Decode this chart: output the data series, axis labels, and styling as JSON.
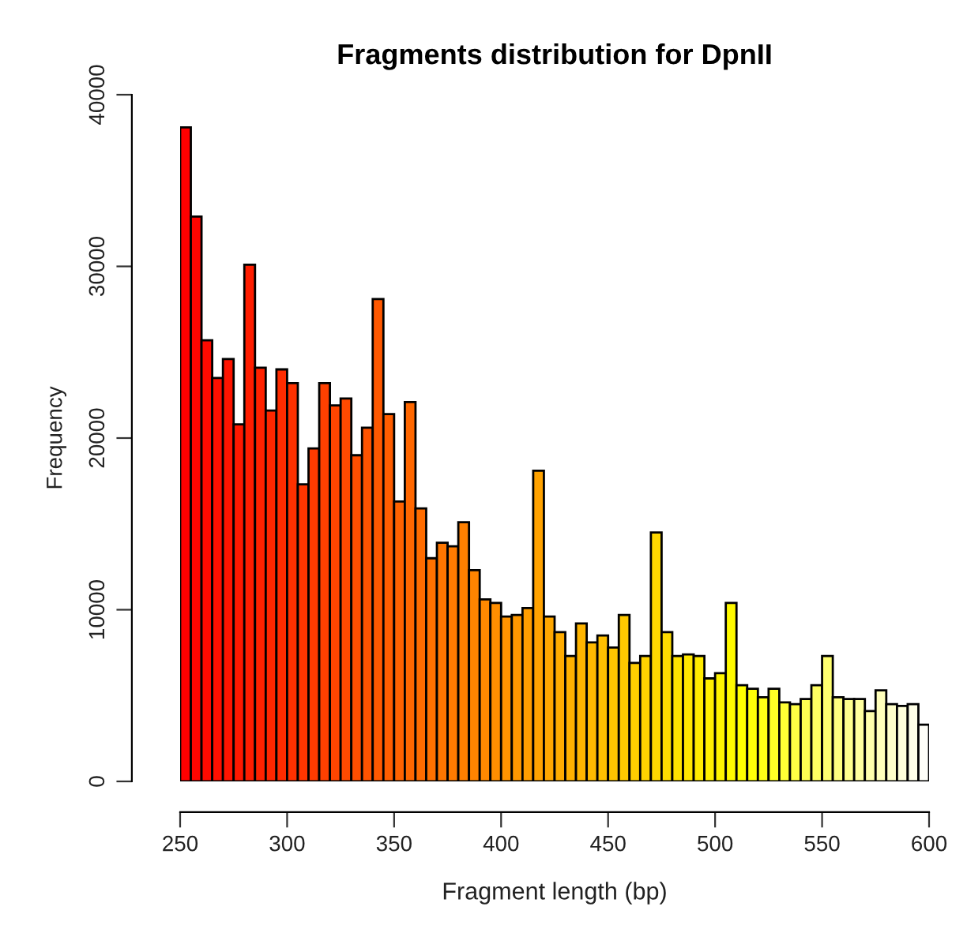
{
  "chart_data": {
    "type": "histogram",
    "title": "Fragments distribution for DpnII",
    "xlabel": "Fragment length (bp)",
    "ylabel": "Frequency",
    "bins": [
      250,
      255,
      260,
      265,
      270,
      275,
      280,
      285,
      290,
      295,
      300,
      305,
      310,
      315,
      320,
      325,
      330,
      335,
      340,
      345,
      350,
      355,
      360,
      365,
      370,
      375,
      380,
      385,
      390,
      395,
      400,
      405,
      410,
      415,
      420,
      425,
      430,
      435,
      440,
      445,
      450,
      455,
      460,
      465,
      470,
      475,
      480,
      485,
      490,
      495,
      500,
      505,
      510,
      515,
      520,
      525,
      530,
      535,
      540,
      545,
      550,
      555,
      560,
      565,
      570,
      575,
      580,
      585,
      590,
      595,
      600
    ],
    "values": [
      38100,
      32900,
      25700,
      23500,
      24600,
      20800,
      30100,
      24100,
      21600,
      24000,
      23200,
      17300,
      19400,
      23200,
      21900,
      22300,
      19000,
      20600,
      28100,
      21400,
      16300,
      22100,
      15900,
      13000,
      13900,
      13700,
      15100,
      12300,
      10600,
      10400,
      9600,
      9700,
      10100,
      18100,
      9600,
      8700,
      7300,
      9200,
      8100,
      8500,
      7800,
      9700,
      6900,
      7300,
      14500,
      8700,
      7300,
      7400,
      7300,
      6000,
      6300,
      10400,
      5600,
      5400,
      4900,
      5400,
      4600,
      4500,
      4800,
      5600,
      7300,
      4900,
      4800,
      4800,
      4100,
      5300,
      4500,
      4400,
      4500,
      3300
    ],
    "colors": [
      "#FF0000",
      "#FF0500",
      "#FF0A00",
      "#FF0F00",
      "#FF1400",
      "#FF1800",
      "#FF1D00",
      "#FF2200",
      "#FF2700",
      "#FF2C00",
      "#FF3100",
      "#FF3600",
      "#FF3B00",
      "#FF4000",
      "#FF4500",
      "#FF4A00",
      "#FF4E00",
      "#FF5300",
      "#FF5800",
      "#FF5D00",
      "#FF6200",
      "#FF6700",
      "#FF6C00",
      "#FF7100",
      "#FF7600",
      "#FF7B00",
      "#FF8000",
      "#FF8400",
      "#FF8900",
      "#FF8E00",
      "#FF9300",
      "#FF9800",
      "#FF9D00",
      "#FFA200",
      "#FFA700",
      "#FFAC00",
      "#FFB100",
      "#FFB500",
      "#FFBA00",
      "#FFBF00",
      "#FFC400",
      "#FFC900",
      "#FFCE00",
      "#FFD300",
      "#FFD800",
      "#FFDD00",
      "#FFE200",
      "#FFE600",
      "#FFEB00",
      "#FFF000",
      "#FFF500",
      "#FFFA00",
      "#FFFF00",
      "#FFFF08",
      "#FFFF17",
      "#FFFF26",
      "#FFFF35",
      "#FFFF44",
      "#FFFF52",
      "#FFFF62",
      "#FFFF70",
      "#FFFF80",
      "#FFFF8E",
      "#FFFF9E",
      "#FFFFAC",
      "#FFFFBB",
      "#FFFFCA",
      "#FFFFDA",
      "#FFFFE8",
      "#FFFFF8"
    ],
    "xlim": [
      250,
      600
    ],
    "xticks": [
      250,
      300,
      350,
      400,
      450,
      500,
      550,
      600
    ],
    "ylim": [
      0,
      40000
    ],
    "yticks": [
      0,
      10000,
      20000,
      30000,
      40000
    ],
    "grid": false,
    "legend": false
  }
}
